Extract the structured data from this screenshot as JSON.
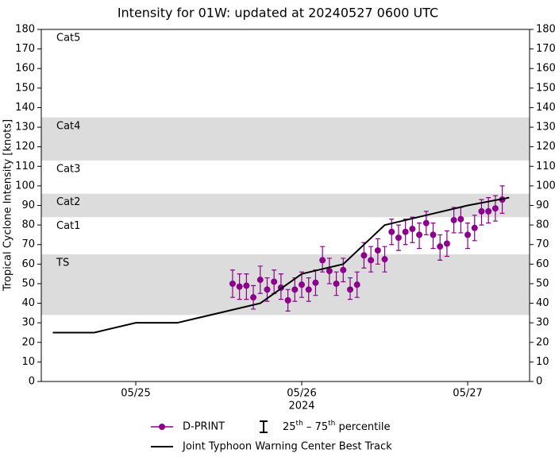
{
  "chart_data": {
    "type": "line",
    "title": "Intensity for 01W: updated at 20240527 0600 UTC",
    "ylabel": "Tropical Cyclone Intensity [knots]",
    "xlabel": "2024",
    "xlim": [
      24.4306,
      27.373
    ],
    "xticks": [
      {
        "value": 25,
        "label": "05/25"
      },
      {
        "value": 26,
        "label": "05/26"
      },
      {
        "value": 27,
        "label": "05/27"
      }
    ],
    "ylim": [
      0,
      180
    ],
    "yticks": [
      0,
      10,
      20,
      30,
      40,
      50,
      60,
      70,
      80,
      90,
      100,
      110,
      120,
      130,
      140,
      150,
      160,
      170,
      180
    ],
    "y2lim": [
      0,
      180
    ],
    "y2ticks": [
      0,
      10,
      20,
      30,
      40,
      50,
      60,
      70,
      80,
      90,
      100,
      110,
      120,
      130,
      140,
      150,
      160,
      170,
      180
    ],
    "bands": [
      {
        "label": "TS",
        "range": [
          34,
          65
        ],
        "shaded": true,
        "color": "#dcdcdc"
      },
      {
        "label": "Cat1",
        "range": [
          65,
          84
        ],
        "shaded": false,
        "color": "#ffffff"
      },
      {
        "label": "Cat2",
        "range": [
          84,
          96
        ],
        "shaded": true,
        "color": "#dcdcdc"
      },
      {
        "label": "Cat3",
        "range": [
          96,
          113
        ],
        "shaded": false,
        "color": "#ffffff"
      },
      {
        "label": "Cat4",
        "range": [
          113,
          135
        ],
        "shaded": true,
        "color": "#dcdcdc"
      },
      {
        "label": "Cat5",
        "range": [
          135,
          180
        ],
        "shaded": false,
        "color": "#ffffff"
      }
    ],
    "series": [
      {
        "name": "D-PRINT",
        "color": "#8b008b",
        "style": "points",
        "x": [
          25.5833,
          25.625,
          25.6667,
          25.7083,
          25.75,
          25.7917,
          25.8333,
          25.875,
          25.9167,
          25.9583,
          26.0,
          26.0417,
          26.0833,
          26.125,
          26.1667,
          26.2083,
          26.25,
          26.2917,
          26.3333,
          26.375,
          26.4167,
          26.4583,
          26.5,
          26.5417,
          26.5833,
          26.625,
          26.6667,
          26.7083,
          26.75,
          26.7917,
          26.8333,
          26.875,
          26.9167,
          26.9583,
          27.0,
          27.0417,
          27.0833,
          27.125,
          27.1667,
          27.2083
        ],
        "values": [
          50,
          48.5,
          49,
          43,
          52,
          47,
          51,
          48,
          41.5,
          47,
          49.5,
          47,
          50.5,
          62,
          56.5,
          50,
          57,
          47,
          49.5,
          64.5,
          62,
          67,
          62.5,
          76.5,
          73.5,
          76.5,
          78,
          75,
          81,
          75,
          69,
          70.5,
          82.5,
          83,
          75,
          78.5,
          87,
          87,
          88.5,
          93
        ],
        "q25": [
          43,
          42,
          42,
          37,
          45,
          41,
          45,
          42,
          36,
          41,
          43,
          41,
          44,
          56,
          50,
          44,
          51,
          42,
          43,
          58,
          56,
          60,
          56,
          70,
          67,
          70,
          71,
          68,
          75,
          68,
          62,
          64,
          76,
          76,
          68,
          72,
          80,
          81,
          82,
          86
        ],
        "q75": [
          57,
          55,
          55,
          49,
          59,
          53,
          57,
          55,
          47,
          53,
          56,
          53,
          57,
          69,
          63,
          56,
          63,
          53,
          56,
          71,
          69,
          73,
          69,
          83,
          80,
          83,
          84,
          81,
          87,
          81,
          75,
          77,
          89,
          89,
          81,
          85,
          93,
          94,
          95,
          100
        ]
      },
      {
        "name": "Joint Typhoon Warning Center Best Track",
        "color": "#000000",
        "style": "line",
        "x": [
          24.5,
          24.75,
          25.0,
          25.25,
          25.5,
          25.75,
          26.0,
          26.25,
          26.5,
          26.75,
          27.0,
          27.25
        ],
        "values": [
          25,
          25,
          30,
          30,
          35,
          40,
          55,
          60,
          80,
          85,
          90,
          94
        ]
      }
    ],
    "percentile_label": [
      "25",
      "th",
      " – 75",
      "th",
      " percentile"
    ]
  }
}
